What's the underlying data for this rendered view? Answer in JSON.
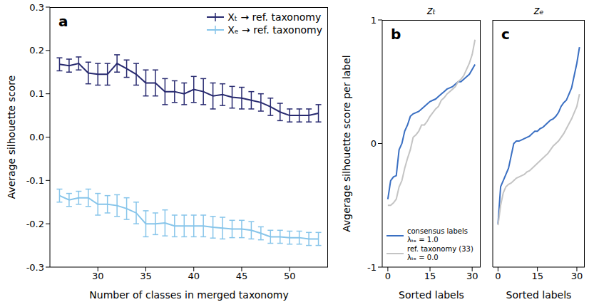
{
  "chart_data": [
    {
      "type": "line",
      "annotations": [
        "a"
      ],
      "xlabel": "Number of classes in merged taxonomy",
      "ylabel": "Average silhouette score",
      "x": [
        26,
        27,
        28,
        29,
        30,
        31,
        32,
        33,
        34,
        35,
        36,
        37,
        38,
        39,
        40,
        41,
        42,
        43,
        44,
        45,
        46,
        47,
        48,
        49,
        50,
        51,
        52,
        53
      ],
      "xlim": [
        25,
        54
      ],
      "xticks": [
        30,
        35,
        40,
        45,
        50
      ],
      "ylim": [
        -0.3,
        0.3
      ],
      "yticks": [
        -0.3,
        -0.2,
        -0.1,
        {
          "value": 0,
          "label": "0.0"
        },
        0.1,
        0.2,
        0.3
      ],
      "legend": "upper right",
      "series": [
        {
          "name": "Xₜ → ref. taxonomy",
          "color": "#27296f",
          "values": [
            0.168,
            0.165,
            0.17,
            0.148,
            0.145,
            0.145,
            0.17,
            0.158,
            0.145,
            0.125,
            0.125,
            0.105,
            0.105,
            0.1,
            0.11,
            0.105,
            0.095,
            0.098,
            0.092,
            0.09,
            0.085,
            0.08,
            0.07,
            0.058,
            0.05,
            0.05,
            0.05,
            0.055
          ],
          "errors": [
            0.015,
            0.015,
            0.015,
            0.025,
            0.025,
            0.025,
            0.02,
            0.02,
            0.025,
            0.03,
            0.03,
            0.03,
            0.025,
            0.025,
            0.03,
            0.03,
            0.03,
            0.025,
            0.025,
            0.025,
            0.02,
            0.02,
            0.02,
            0.02,
            0.015,
            0.015,
            0.015,
            0.02
          ]
        },
        {
          "name": "Xₑ → ref. taxonomy",
          "color": "#87c5ea",
          "values": [
            -0.135,
            -0.145,
            -0.14,
            -0.14,
            -0.155,
            -0.155,
            -0.158,
            -0.165,
            -0.175,
            -0.2,
            -0.2,
            -0.198,
            -0.205,
            -0.205,
            -0.205,
            -0.205,
            -0.208,
            -0.21,
            -0.212,
            -0.212,
            -0.215,
            -0.222,
            -0.23,
            -0.23,
            -0.232,
            -0.232,
            -0.235,
            -0.235
          ],
          "errors": [
            0.015,
            0.015,
            0.015,
            0.02,
            0.025,
            0.02,
            0.025,
            0.025,
            0.025,
            0.03,
            0.025,
            0.03,
            0.025,
            0.025,
            0.025,
            0.025,
            0.025,
            0.025,
            0.02,
            0.02,
            0.02,
            0.015,
            0.015,
            0.015,
            0.015,
            0.015,
            0.015,
            0.015
          ]
        }
      ]
    },
    {
      "type": "line",
      "annotations": [
        "b"
      ],
      "title": "zₜ",
      "xlabel": "Sorted labels",
      "ylabel": "Avgerage silhouette score per label",
      "x": [
        0,
        1,
        2,
        3,
        4,
        5,
        6,
        7,
        8,
        9,
        10,
        11,
        12,
        13,
        14,
        15,
        16,
        17,
        18,
        19,
        20,
        21,
        22,
        23,
        24,
        25,
        26,
        27,
        28,
        29,
        30,
        31
      ],
      "xlim": [
        -2,
        33
      ],
      "xticks": [
        0,
        15,
        30
      ],
      "ylim": [
        -1,
        1
      ],
      "yticks": [
        -1,
        0,
        1
      ],
      "legend": "lower left",
      "series": [
        {
          "name": "consensus labels\nλₜₑ = 1.0",
          "color": "#3a6fc2",
          "values": [
            -0.45,
            -0.3,
            -0.27,
            -0.26,
            -0.05,
            0.0,
            0.1,
            0.15,
            0.22,
            0.24,
            0.25,
            0.26,
            0.28,
            0.3,
            0.32,
            0.34,
            0.35,
            0.36,
            0.38,
            0.4,
            0.42,
            0.44,
            0.45,
            0.46,
            0.48,
            0.5,
            0.5,
            0.52,
            0.54,
            0.56,
            0.6,
            0.64
          ]
        },
        {
          "name": "ref. taxonomy (33)\nλₜₑ = 0.0",
          "color": "#c4c4c4",
          "values": [
            -0.5,
            -0.5,
            -0.48,
            -0.45,
            -0.35,
            -0.3,
            -0.2,
            -0.12,
            -0.05,
            0.05,
            0.07,
            0.1,
            0.15,
            0.15,
            0.18,
            0.22,
            0.25,
            0.28,
            0.3,
            0.35,
            0.37,
            0.4,
            0.42,
            0.44,
            0.46,
            0.5,
            0.52,
            0.55,
            0.6,
            0.65,
            0.72,
            0.84
          ]
        }
      ]
    },
    {
      "type": "line",
      "annotations": [
        "c"
      ],
      "title": "zₑ",
      "xlabel": "Sorted labels",
      "x": [
        0,
        1,
        2,
        3,
        4,
        5,
        6,
        7,
        8,
        9,
        10,
        11,
        12,
        13,
        14,
        15,
        16,
        17,
        18,
        19,
        20,
        21,
        22,
        23,
        24,
        25,
        26,
        27,
        28,
        29,
        30,
        31
      ],
      "xlim": [
        -2,
        33
      ],
      "xticks": [
        0,
        15,
        30
      ],
      "ylim": [
        -1,
        1
      ],
      "yticks": [
        -1,
        0,
        1
      ],
      "tick_labels": "x",
      "series": [
        {
          "color": "#3a6fc2",
          "values": [
            -0.65,
            -0.35,
            -0.3,
            -0.25,
            -0.2,
            -0.1,
            0.0,
            0.02,
            0.02,
            0.03,
            0.04,
            0.05,
            0.06,
            0.08,
            0.1,
            0.1,
            0.12,
            0.13,
            0.15,
            0.17,
            0.19,
            0.2,
            0.22,
            0.25,
            0.3,
            0.33,
            0.35,
            0.4,
            0.45,
            0.55,
            0.65,
            0.78
          ]
        },
        {
          "color": "#c4c4c4",
          "values": [
            -0.66,
            -0.5,
            -0.4,
            -0.35,
            -0.33,
            -0.32,
            -0.3,
            -0.28,
            -0.27,
            -0.26,
            -0.25,
            -0.23,
            -0.22,
            -0.2,
            -0.18,
            -0.16,
            -0.14,
            -0.12,
            -0.1,
            -0.08,
            -0.05,
            -0.02,
            0.0,
            0.02,
            0.05,
            0.08,
            0.12,
            0.16,
            0.2,
            0.25,
            0.3,
            0.4
          ]
        }
      ]
    }
  ]
}
